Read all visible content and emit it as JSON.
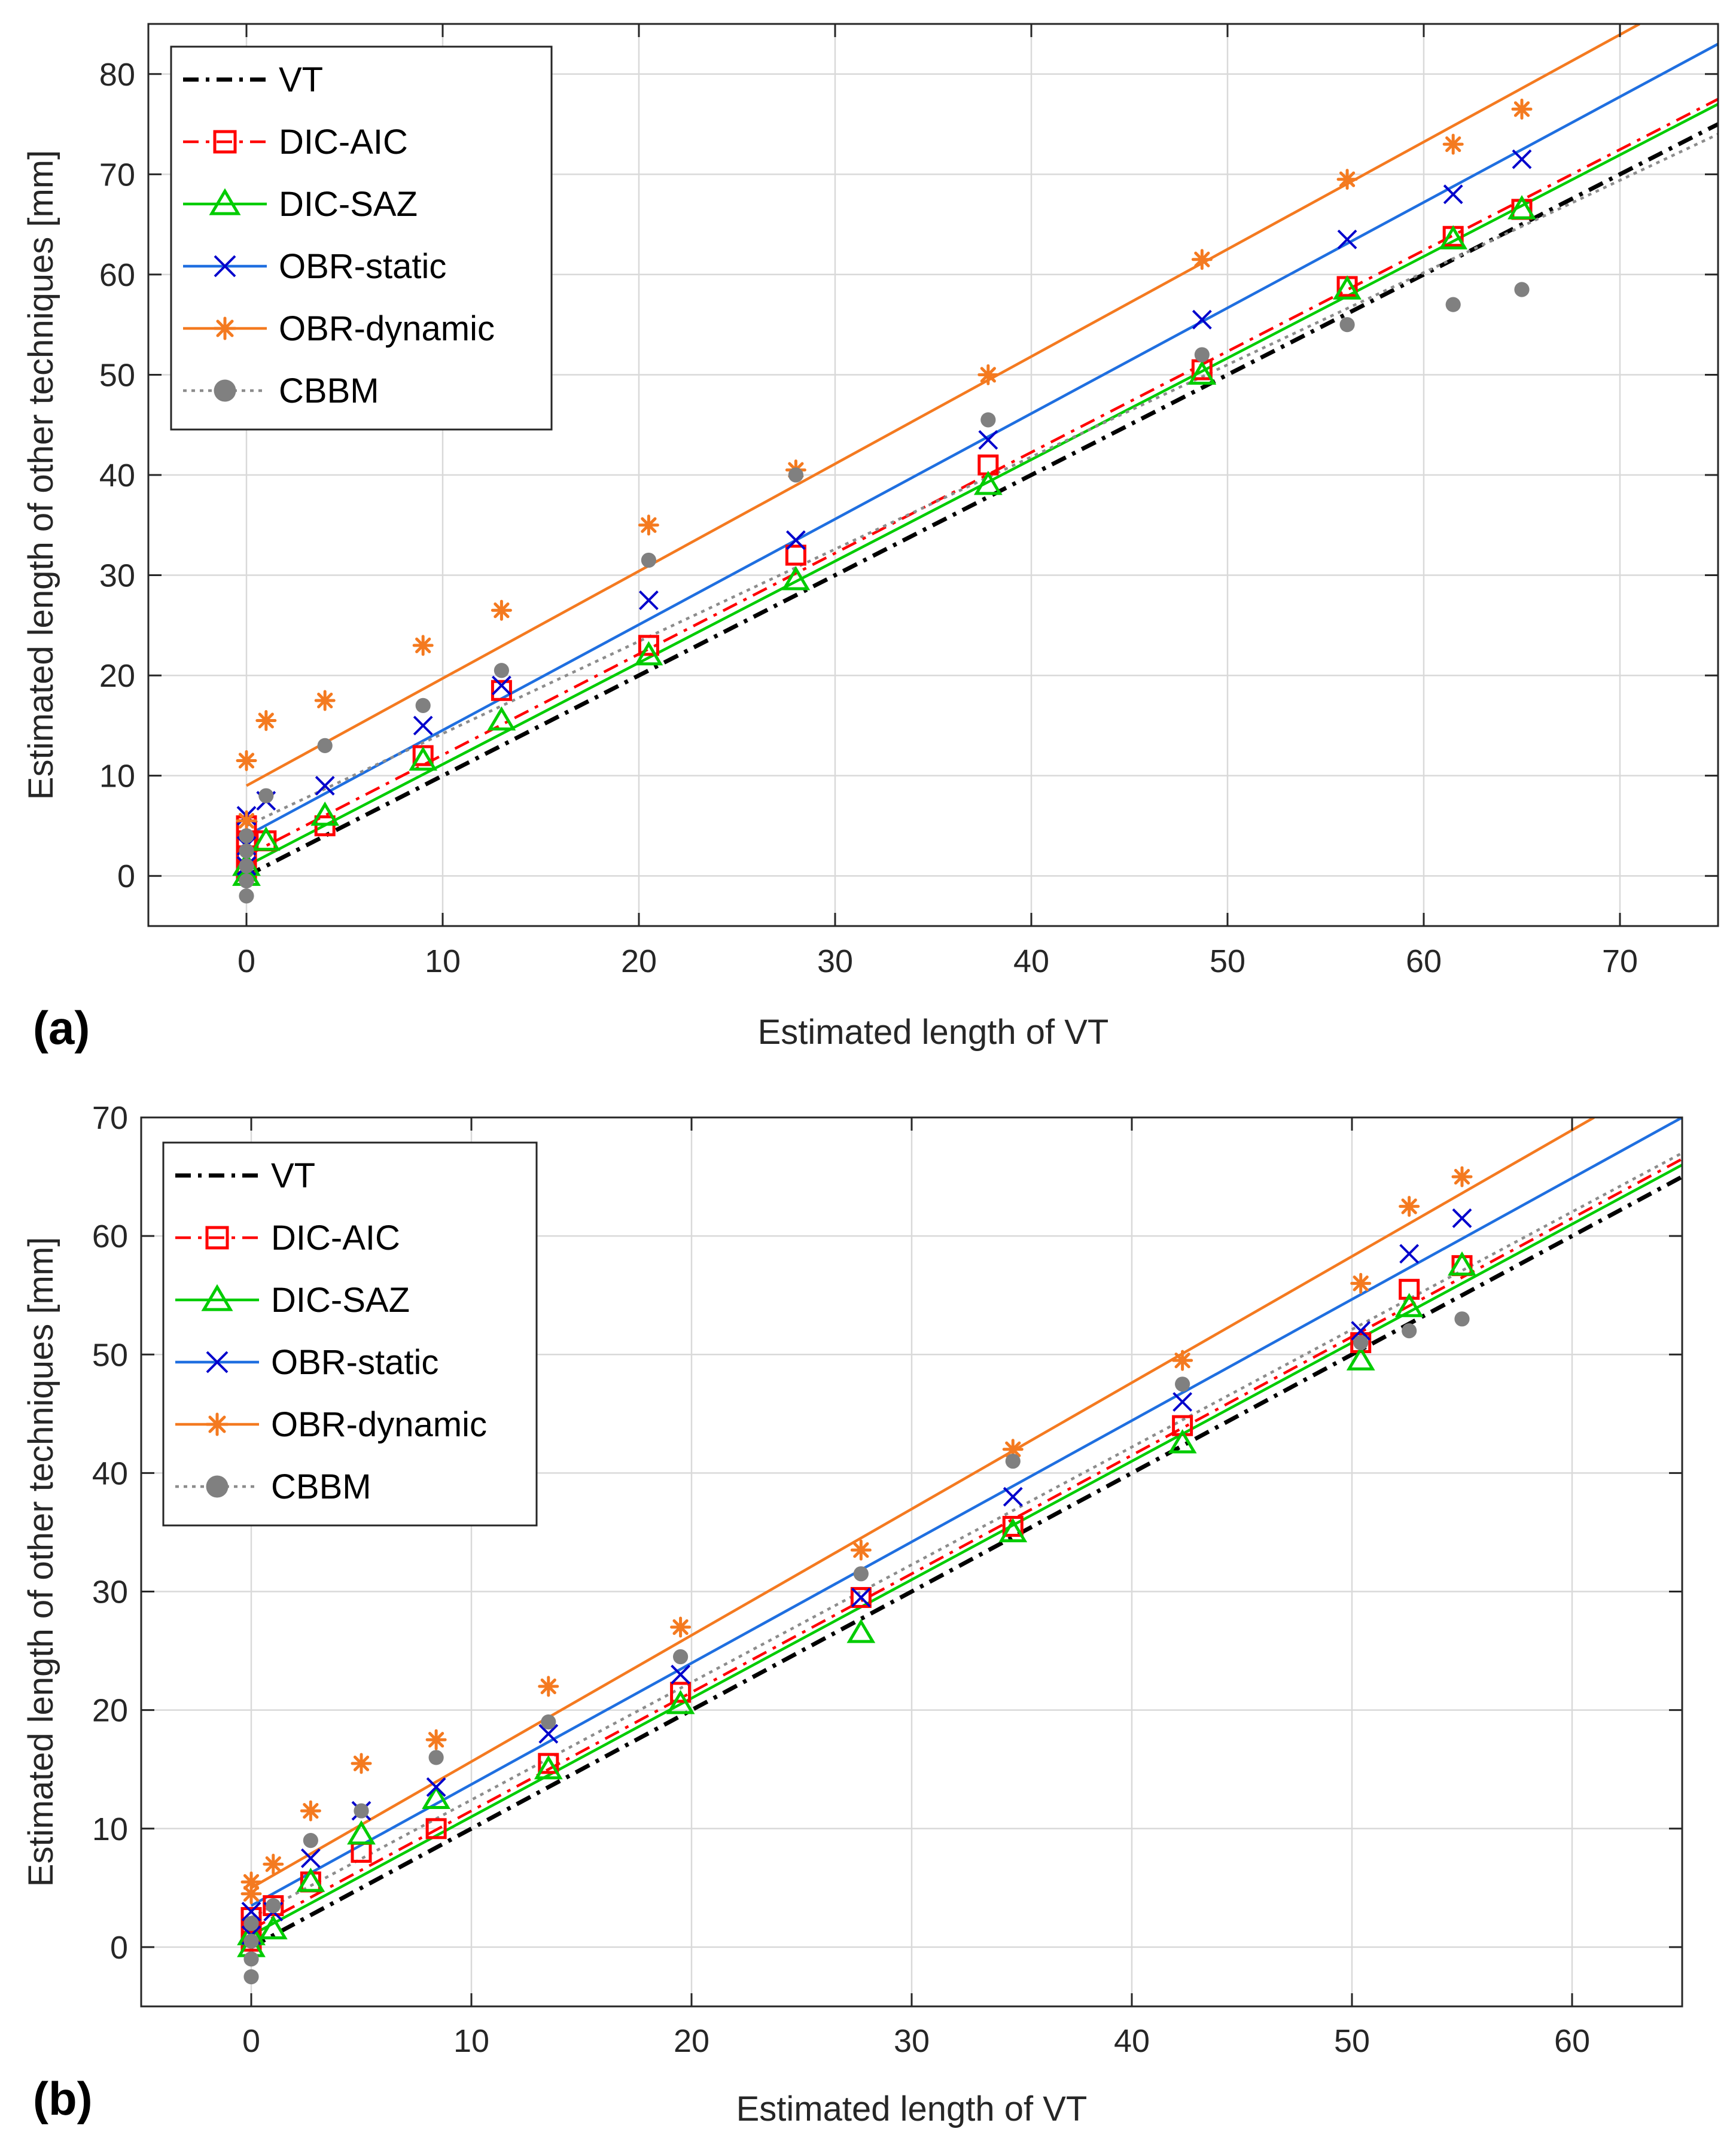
{
  "figure": {
    "panel_labels": [
      "(a)",
      "(b)"
    ]
  },
  "legend_entries": [
    {
      "name": "VT",
      "color": "#000000",
      "marker": "none",
      "dash": "dashdot"
    },
    {
      "name": "DIC-AIC",
      "color": "#ff0000",
      "marker": "square",
      "dash": "dashdot"
    },
    {
      "name": "DIC-SAZ",
      "color": "#00cc00",
      "marker": "triangle",
      "dash": "solid"
    },
    {
      "name": "OBR-static",
      "color": "#1f6fe0",
      "marker": "x",
      "dash": "solid",
      "marker_color": "#0000cc"
    },
    {
      "name": "OBR-dynamic",
      "color": "#f47a20",
      "marker": "asterisk",
      "dash": "solid"
    },
    {
      "name": "CBBM",
      "color": "#8c8c8c",
      "marker": "dot",
      "dash": "dotted",
      "marker_color": "#808080"
    }
  ],
  "chart_data": [
    {
      "type": "scatter",
      "panel": "(a)",
      "xlabel": "Estimated length of VT",
      "ylabel": "Estimated length of other techniques [mm]",
      "xlim": [
        -5,
        75
      ],
      "ylim": [
        -5,
        85
      ],
      "xticks": [
        0,
        10,
        20,
        30,
        40,
        50,
        60,
        70
      ],
      "yticks": [
        0,
        10,
        20,
        30,
        40,
        50,
        60,
        70,
        80
      ],
      "grid": true,
      "legend": "top-left",
      "fit_lines": [
        {
          "name": "VT",
          "x": [
            0,
            75
          ],
          "y": [
            0,
            75
          ]
        },
        {
          "name": "DIC-AIC",
          "x": [
            0,
            75
          ],
          "y": [
            2,
            77.5
          ]
        },
        {
          "name": "DIC-SAZ",
          "x": [
            0,
            75
          ],
          "y": [
            1,
            77
          ]
        },
        {
          "name": "OBR-static",
          "x": [
            0,
            75
          ],
          "y": [
            4,
            83
          ]
        },
        {
          "name": "OBR-dynamic",
          "x": [
            0,
            71
          ],
          "y": [
            9,
            85
          ]
        },
        {
          "name": "CBBM",
          "x": [
            0,
            75
          ],
          "y": [
            5,
            74
          ]
        }
      ],
      "series": [
        {
          "name": "DIC-AIC",
          "x": [
            0,
            0,
            0,
            0,
            1,
            4,
            9,
            13,
            20.5,
            28,
            37.8,
            48.7,
            56.1,
            61.5,
            65
          ],
          "y": [
            0.5,
            2,
            3.5,
            5,
            3.5,
            5,
            12,
            18.5,
            23,
            32,
            41,
            50.5,
            58.8,
            63.8,
            66.5
          ]
        },
        {
          "name": "DIC-SAZ",
          "x": [
            0,
            0,
            1,
            4,
            9,
            13,
            20.5,
            28,
            37.8,
            48.7,
            56.1,
            61.5,
            65
          ],
          "y": [
            0,
            1,
            3.5,
            6,
            11.5,
            15.5,
            22,
            29.5,
            39,
            50,
            58.5,
            63.5,
            66.5
          ]
        },
        {
          "name": "OBR-static",
          "x": [
            0,
            0,
            0,
            1,
            4,
            9,
            13,
            20.5,
            28,
            37.8,
            48.7,
            56.1,
            61.5,
            65
          ],
          "y": [
            1,
            3,
            6,
            7.5,
            9,
            15,
            19,
            27.5,
            33.5,
            43.5,
            55.5,
            63.5,
            68,
            71.5
          ]
        },
        {
          "name": "OBR-dynamic",
          "x": [
            0,
            0,
            1,
            4,
            9,
            13,
            20.5,
            28,
            37.8,
            48.7,
            56.1,
            61.5,
            65
          ],
          "y": [
            5.5,
            11.5,
            15.5,
            17.5,
            23,
            26.5,
            35,
            40.5,
            50,
            61.5,
            69.5,
            73,
            76.5
          ]
        },
        {
          "name": "CBBM",
          "x": [
            0,
            0,
            0,
            0,
            0,
            1,
            4,
            9,
            13,
            20.5,
            28,
            37.8,
            48.7,
            56.1,
            61.5,
            65
          ],
          "y": [
            -2,
            -0.5,
            1,
            2.5,
            4,
            8,
            13,
            17,
            20.5,
            31.5,
            40,
            45.5,
            52,
            55,
            57,
            58.5
          ]
        }
      ]
    },
    {
      "type": "scatter",
      "panel": "(b)",
      "xlabel": "Estimated length of VT",
      "ylabel": "Estimated length of other techniques [mm]",
      "xlim": [
        -5,
        65
      ],
      "ylim": [
        -5,
        70
      ],
      "xticks": [
        0,
        10,
        20,
        30,
        40,
        50,
        60
      ],
      "yticks": [
        0,
        10,
        20,
        30,
        40,
        50,
        60,
        70
      ],
      "grid": true,
      "legend": "top-left",
      "fit_lines": [
        {
          "name": "VT",
          "x": [
            0,
            65
          ],
          "y": [
            0,
            65
          ]
        },
        {
          "name": "DIC-AIC",
          "x": [
            0,
            65
          ],
          "y": [
            1.5,
            66.5
          ]
        },
        {
          "name": "DIC-SAZ",
          "x": [
            0,
            65
          ],
          "y": [
            1,
            66
          ]
        },
        {
          "name": "OBR-static",
          "x": [
            0,
            65
          ],
          "y": [
            3.5,
            70
          ]
        },
        {
          "name": "OBR-dynamic",
          "x": [
            0,
            61
          ],
          "y": [
            5,
            70
          ]
        },
        {
          "name": "CBBM",
          "x": [
            0,
            65
          ],
          "y": [
            2.5,
            67
          ]
        }
      ],
      "series": [
        {
          "name": "DIC-AIC",
          "x": [
            0,
            0,
            0,
            1,
            2.7,
            5,
            8.4,
            13.5,
            19.5,
            27.7,
            34.6,
            42.3,
            50.4,
            52.6,
            55
          ],
          "y": [
            0.5,
            1.5,
            2.5,
            3.5,
            5.5,
            8,
            10,
            15.5,
            21.5,
            29.5,
            35.5,
            44,
            51,
            55.5,
            57.5
          ]
        },
        {
          "name": "DIC-SAZ",
          "x": [
            0,
            0,
            1,
            2.7,
            5,
            8.4,
            13.5,
            19.5,
            27.7,
            34.6,
            42.3,
            50.4,
            52.6,
            55
          ],
          "y": [
            0,
            1,
            1.5,
            5.5,
            9.5,
            12.5,
            15,
            20.5,
            26.5,
            35,
            42.5,
            49.5,
            54,
            57.5
          ]
        },
        {
          "name": "OBR-static",
          "x": [
            0,
            0,
            1,
            2.7,
            5,
            8.4,
            13.5,
            19.5,
            27.7,
            34.6,
            42.3,
            50.4,
            52.6,
            55
          ],
          "y": [
            1,
            3,
            3,
            7.5,
            11.5,
            13.5,
            18,
            23,
            29.5,
            38,
            46,
            52,
            58.5,
            61.5
          ]
        },
        {
          "name": "OBR-dynamic",
          "x": [
            0,
            0,
            1,
            2.7,
            5,
            8.4,
            13.5,
            19.5,
            27.7,
            34.6,
            42.3,
            50.4,
            52.6,
            55
          ],
          "y": [
            4.5,
            5.5,
            7,
            11.5,
            15.5,
            17.5,
            22,
            27,
            33.5,
            42,
            49.5,
            56,
            62.5,
            65
          ]
        },
        {
          "name": "CBBM",
          "x": [
            0,
            0,
            0,
            0,
            1,
            2.7,
            5,
            8.4,
            13.5,
            19.5,
            27.7,
            34.6,
            42.3,
            50.4,
            52.6,
            55
          ],
          "y": [
            -2.5,
            -1,
            0.5,
            2,
            3.5,
            9,
            11.5,
            16,
            19,
            24.5,
            31.5,
            41,
            47.5,
            51,
            52,
            53
          ]
        }
      ]
    }
  ]
}
